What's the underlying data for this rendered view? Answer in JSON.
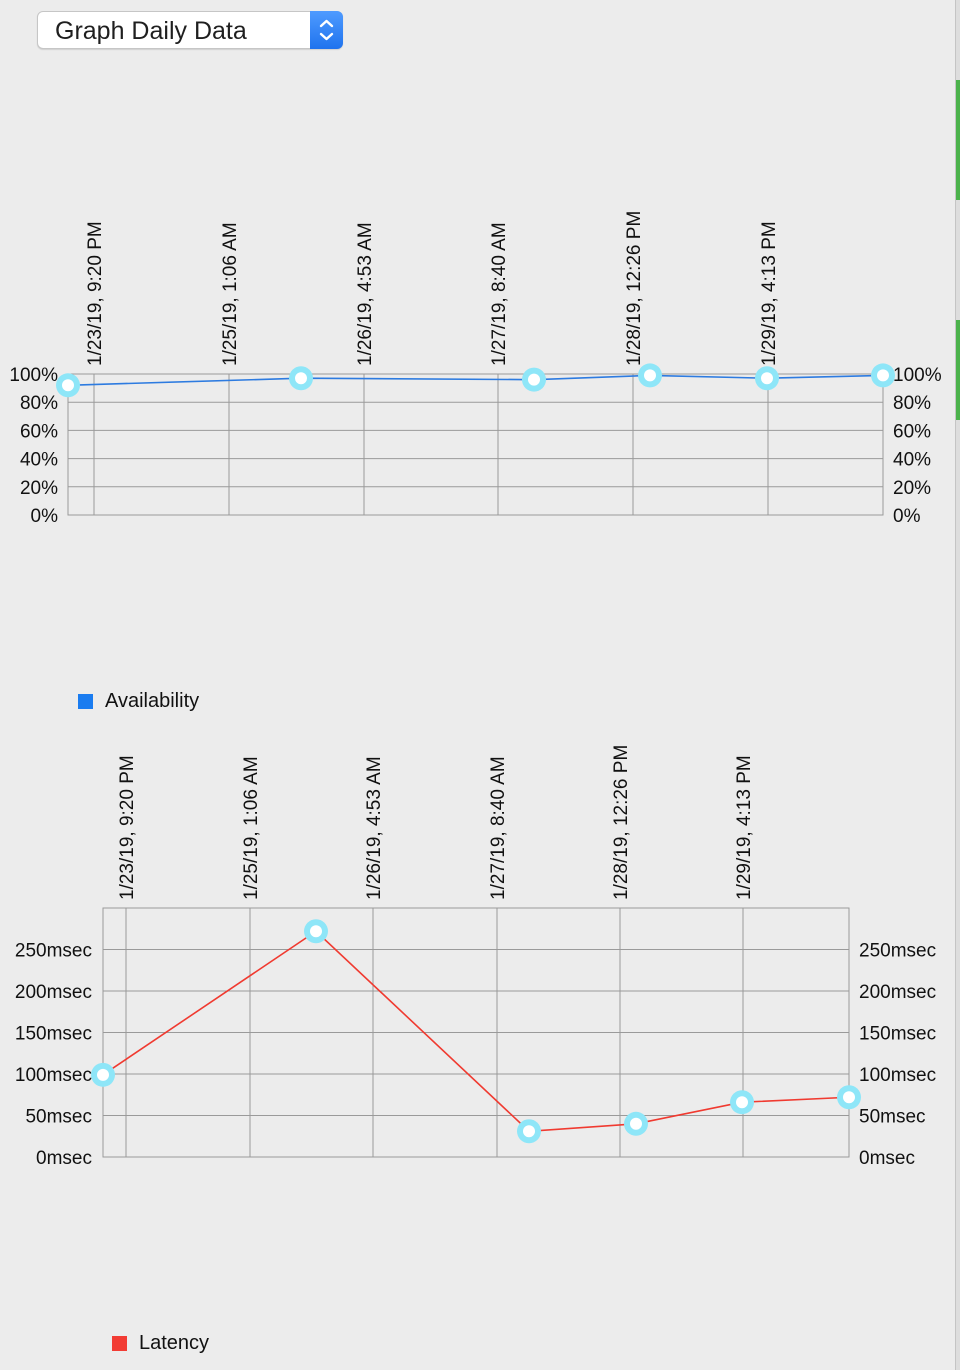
{
  "popup": {
    "label": "Graph Daily Data"
  },
  "charts": {
    "availability": {
      "color": "#2d7be0",
      "legend_swatch": "#1a7cf0",
      "marker_color": "#8ee6f8"
    },
    "latency": {
      "color": "#f03a30",
      "legend_swatch": "#f23c34",
      "marker_color": "#8ee6f8"
    }
  },
  "chart_data": [
    {
      "type": "line",
      "x_tick_labels": [
        "1/23/19, 9:20 PM",
        "1/25/19, 1:06 AM",
        "1/26/19, 4:53 AM",
        "1/27/19, 8:40 AM",
        "1/28/19, 12:26 PM",
        "1/29/19, 4:13 PM"
      ],
      "y_tick_labels_left": [
        "100%",
        "80%",
        "60%",
        "40%",
        "20%",
        "0%"
      ],
      "y_tick_labels_right": [
        "100%",
        "80%",
        "60%",
        "40%",
        "20%",
        "0%"
      ],
      "ylim": [
        0,
        100
      ],
      "series": [
        {
          "name": "Availability",
          "values": [
            92,
            97,
            96,
            99,
            97,
            99
          ]
        }
      ],
      "grid": true,
      "legend": "bottom-left"
    },
    {
      "type": "line",
      "x_tick_labels": [
        "1/23/19, 9:20 PM",
        "1/25/19, 1:06 AM",
        "1/26/19, 4:53 AM",
        "1/27/19, 8:40 AM",
        "1/28/19, 12:26 PM",
        "1/29/19, 4:13 PM"
      ],
      "y_tick_labels_left": [
        "250msec",
        "200msec",
        "150msec",
        "100msec",
        "50msec",
        "0msec"
      ],
      "y_tick_labels_right": [
        "250msec",
        "200msec",
        "150msec",
        "100msec",
        "50msec",
        "0msec"
      ],
      "ylim": [
        0,
        300
      ],
      "series": [
        {
          "name": "Latency",
          "values": [
            99,
            272,
            31,
            40,
            66,
            72
          ]
        }
      ],
      "grid": true,
      "legend": "bottom-left"
    }
  ]
}
